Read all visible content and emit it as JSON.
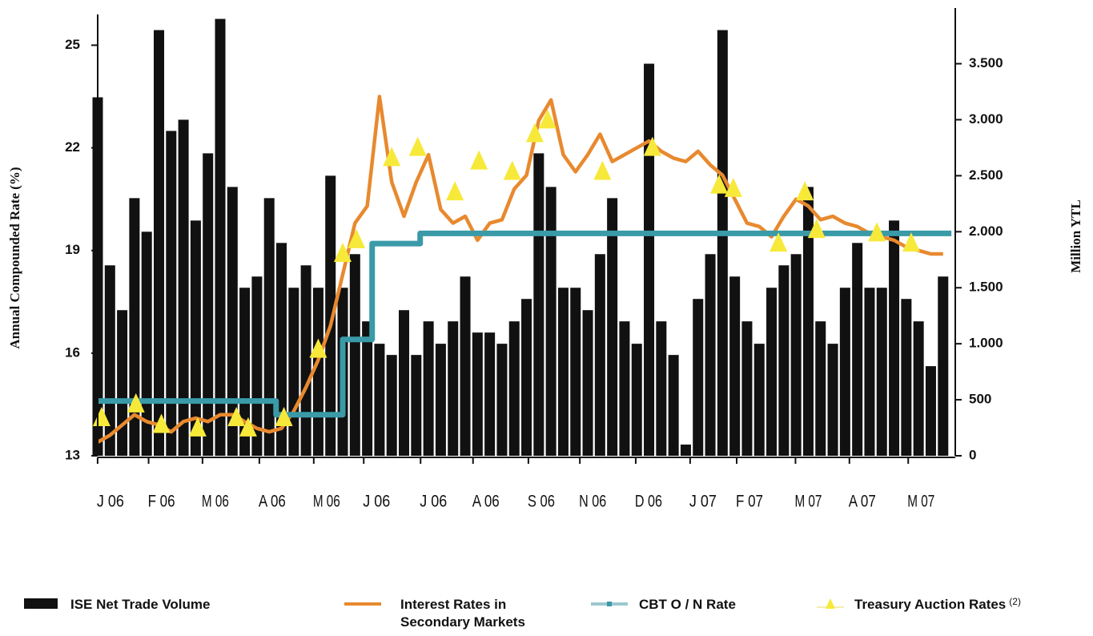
{
  "chart_data": {
    "type": "combo",
    "ylabel": "Annual Compounded Rate  (%)",
    "y2label": "Million YTL",
    "xlim": [
      0,
      17.45
    ],
    "xticks": [
      {
        "value": 0.26,
        "label": "J 06"
      },
      {
        "value": 1.3,
        "label": "F 06"
      },
      {
        "value": 2.4,
        "label": "M 06"
      },
      {
        "value": 3.56,
        "label": "A 06"
      },
      {
        "value": 4.67,
        "label": "M 06"
      },
      {
        "value": 5.69,
        "label": "J 06"
      },
      {
        "value": 6.85,
        "label": "J 06"
      },
      {
        "value": 7.92,
        "label": "A 06"
      },
      {
        "value": 9.05,
        "label": "S 06"
      },
      {
        "value": 10.1,
        "label": "N 06"
      },
      {
        "value": 11.24,
        "label": "D 06"
      },
      {
        "value": 12.35,
        "label": "J 07"
      },
      {
        "value": 13.3,
        "label": "F 07"
      },
      {
        "value": 14.5,
        "label": "M 07"
      },
      {
        "value": 15.6,
        "label": "A 07"
      },
      {
        "value": 16.8,
        "label": "M 07"
      }
    ],
    "ylim": [
      13,
      25.9
    ],
    "yticks": [
      13,
      16,
      19,
      22,
      25
    ],
    "y2lim": [
      0,
      3940
    ],
    "y2ticks": [
      0,
      500,
      {
        "value": 1000,
        "label": "1.000"
      },
      {
        "value": 1500,
        "label": "1.500"
      },
      {
        "value": 2000,
        "label": "2.000"
      },
      {
        "value": 2500,
        "label": "2.500"
      },
      {
        "value": 3000,
        "label": "3.000"
      },
      {
        "value": 3500,
        "label": "3.500"
      }
    ],
    "superscript": "(2)",
    "series": [
      {
        "name": "ISE Net Trade Volume",
        "type": "bar",
        "axis": "y2",
        "color": "#111111",
        "x": [
          0,
          0.25,
          0.5,
          0.75,
          1,
          1.25,
          1.5,
          1.75,
          2,
          2.25,
          2.5,
          2.75,
          3,
          3.25,
          3.5,
          3.75,
          4,
          4.25,
          4.5,
          4.75,
          5,
          5.25,
          5.5,
          5.75,
          6,
          6.25,
          6.5,
          6.75,
          7,
          7.25,
          7.5,
          7.75,
          8,
          8.25,
          8.5,
          8.75,
          9,
          9.25,
          9.5,
          9.75,
          10,
          10.25,
          10.5,
          10.75,
          11,
          11.25,
          11.5,
          11.75,
          12,
          12.25,
          12.5,
          12.75,
          13,
          13.25,
          13.5,
          13.75,
          14,
          14.25,
          14.5,
          14.75,
          15,
          15.25,
          15.5,
          15.75,
          16,
          16.25,
          16.5,
          16.75,
          17,
          17.25
        ],
        "values": [
          3200,
          1700,
          1300,
          2300,
          2000,
          3800,
          2900,
          3000,
          2100,
          2700,
          3900,
          2400,
          1500,
          1600,
          2300,
          1900,
          1500,
          1700,
          1500,
          2500,
          1500,
          1800,
          1200,
          1000,
          900,
          1300,
          900,
          1200,
          1000,
          1200,
          1600,
          1100,
          1100,
          1000,
          1200,
          1400,
          2700,
          2400,
          1500,
          1500,
          1300,
          1800,
          2300,
          1200,
          1000,
          3500,
          1200,
          900,
          100,
          1400,
          1800,
          3800,
          1600,
          1200,
          1000,
          1500,
          1700,
          1800,
          2400,
          1200,
          1000,
          1500,
          1900,
          1500,
          1500,
          2100,
          1400,
          1200,
          800,
          1600
        ]
      },
      {
        "name": "Interest Rates in Secondary Markets",
        "type": "line",
        "color": "#e8892e",
        "x": [
          0,
          0.25,
          0.5,
          0.75,
          1,
          1.25,
          1.5,
          1.75,
          2,
          2.25,
          2.5,
          2.75,
          3,
          3.25,
          3.5,
          3.75,
          4,
          4.25,
          4.5,
          4.75,
          5,
          5.25,
          5.5,
          5.75,
          6,
          6.25,
          6.5,
          6.75,
          7,
          7.25,
          7.5,
          7.75,
          8,
          8.25,
          8.5,
          8.75,
          9,
          9.25,
          9.5,
          9.75,
          10,
          10.25,
          10.5,
          10.75,
          11,
          11.25,
          11.5,
          11.75,
          12,
          12.25,
          12.5,
          12.75,
          13,
          13.25,
          13.5,
          13.75,
          14,
          14.25,
          14.5,
          14.75,
          15,
          15.25,
          15.5,
          15.75,
          16,
          16.25,
          16.5,
          16.75,
          17,
          17.25
        ],
        "values": [
          13.4,
          13.6,
          13.9,
          14.2,
          14.0,
          13.9,
          13.7,
          14.0,
          14.1,
          14.0,
          14.2,
          14.2,
          14.0,
          13.8,
          13.7,
          13.8,
          14.3,
          15.0,
          15.8,
          16.8,
          18.3,
          19.8,
          20.3,
          23.5,
          21.0,
          20.0,
          21.0,
          21.8,
          20.2,
          19.8,
          20.0,
          19.3,
          19.8,
          19.9,
          20.8,
          21.2,
          22.8,
          23.4,
          21.8,
          21.3,
          21.8,
          22.4,
          21.6,
          21.8,
          22.0,
          22.2,
          21.9,
          21.7,
          21.6,
          21.9,
          21.5,
          21.2,
          20.5,
          19.8,
          19.7,
          19.4,
          20.0,
          20.5,
          20.3,
          19.9,
          20.0,
          19.8,
          19.7,
          19.5,
          19.4,
          19.3,
          19.1,
          19.0,
          18.9,
          18.9
        ]
      },
      {
        "name": "CBT O / N Rate",
        "type": "line",
        "color": "#3a9aa8",
        "x": [
          0,
          3.64,
          3.64,
          5.0,
          5.0,
          5.6,
          5.6,
          6.58,
          6.58,
          17.42
        ],
        "values": [
          14.6,
          14.6,
          14.2,
          14.2,
          16.4,
          16.4,
          19.2,
          19.2,
          19.5,
          19.5
        ]
      },
      {
        "name": "Treasury Auction Rates",
        "type": "scatter",
        "color": "#f7e93a",
        "x": [
          0.08,
          0.78,
          1.3,
          2.04,
          2.83,
          3.07,
          3.8,
          4.5,
          5.0,
          5.28,
          6.0,
          6.53,
          7.29,
          7.78,
          8.46,
          8.92,
          9.18,
          10.3,
          11.32,
          12.68,
          12.97,
          13.89,
          14.43,
          14.67,
          15.9,
          16.6
        ],
        "values": [
          14.1,
          14.5,
          13.9,
          13.8,
          14.1,
          13.8,
          14.1,
          16.1,
          18.9,
          19.3,
          21.7,
          22.0,
          20.7,
          21.6,
          21.3,
          22.4,
          22.8,
          21.3,
          22.0,
          20.9,
          20.8,
          19.2,
          20.7,
          19.6,
          19.5,
          19.2
        ]
      }
    ]
  }
}
